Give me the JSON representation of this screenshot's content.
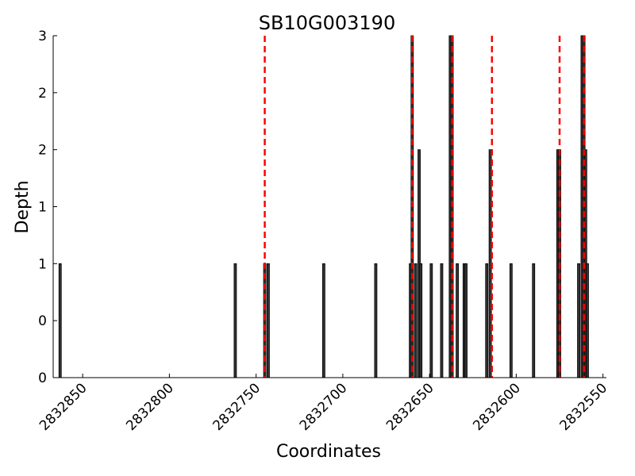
{
  "chart_data": {
    "type": "bar",
    "title": "SB10G003190",
    "xlabel": "Coordinates",
    "ylabel": "Depth",
    "x_reversed": true,
    "xlim": [
      2832867,
      2832548
    ],
    "ylim": [
      0,
      3
    ],
    "x_ticks": [
      2832850,
      2832800,
      2832750,
      2832700,
      2832650,
      2832600,
      2832550
    ],
    "x_tick_labels": [
      "2832850",
      "2832800",
      "2832750",
      "2832700",
      "2832650",
      "2832600",
      "2832550"
    ],
    "y_ticks": [
      0,
      0.5,
      1,
      1.5,
      2,
      2.5,
      3
    ],
    "y_tick_labels": [
      "0",
      "0",
      "1",
      "1",
      "2",
      "2",
      "3"
    ],
    "bar_color": "#000000",
    "marker_color": "#ff0000",
    "bars": [
      {
        "x": 2832863,
        "depth": 1
      },
      {
        "x": 2832762,
        "depth": 1
      },
      {
        "x": 2832745,
        "depth": 1
      },
      {
        "x": 2832743,
        "depth": 1
      },
      {
        "x": 2832711,
        "depth": 1
      },
      {
        "x": 2832681,
        "depth": 1
      },
      {
        "x": 2832661,
        "depth": 1
      },
      {
        "x": 2832660,
        "depth": 3
      },
      {
        "x": 2832658,
        "depth": 1
      },
      {
        "x": 2832656,
        "depth": 2
      },
      {
        "x": 2832655,
        "depth": 1
      },
      {
        "x": 2832649,
        "depth": 1
      },
      {
        "x": 2832643,
        "depth": 1
      },
      {
        "x": 2832638,
        "depth": 3
      },
      {
        "x": 2832637,
        "depth": 3
      },
      {
        "x": 2832634,
        "depth": 1
      },
      {
        "x": 2832630,
        "depth": 1
      },
      {
        "x": 2832629,
        "depth": 1
      },
      {
        "x": 2832617,
        "depth": 1
      },
      {
        "x": 2832615,
        "depth": 2
      },
      {
        "x": 2832603,
        "depth": 1
      },
      {
        "x": 2832590,
        "depth": 1
      },
      {
        "x": 2832576,
        "depth": 2
      },
      {
        "x": 2832575,
        "depth": 2
      },
      {
        "x": 2832564,
        "depth": 1
      },
      {
        "x": 2832562,
        "depth": 3
      },
      {
        "x": 2832561,
        "depth": 3
      },
      {
        "x": 2832560,
        "depth": 2
      },
      {
        "x": 2832559,
        "depth": 1
      }
    ],
    "markers": [
      2832745,
      2832660,
      2832637,
      2832614,
      2832575,
      2832561
    ]
  }
}
